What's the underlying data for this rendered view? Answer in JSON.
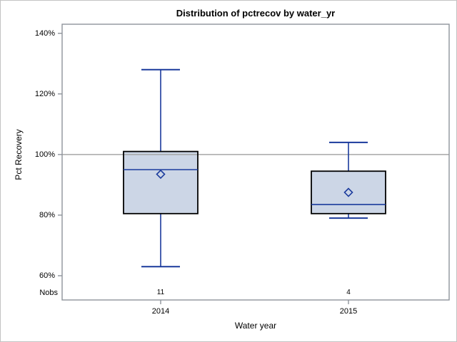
{
  "chart_data": {
    "type": "boxplot",
    "title": "Distribution of pctrecov by water_yr",
    "xlabel": "Water year",
    "ylabel": "Pct Recovery",
    "ylim": [
      52,
      143
    ],
    "y_ticks": [
      {
        "value": 140,
        "label": "140%"
      },
      {
        "value": 120,
        "label": "120%"
      },
      {
        "value": 100,
        "label": "100%"
      },
      {
        "value": 80,
        "label": "80%"
      },
      {
        "value": 60,
        "label": "60%"
      }
    ],
    "reference_lines": [
      100
    ],
    "grid": "single horizontal reference line at 100%",
    "legend": "none",
    "nobs_row_label": "Nobs",
    "categories": [
      "2014",
      "2015"
    ],
    "groups": [
      {
        "category": "2014",
        "nobs": "11",
        "whisker_low": 63,
        "q1": 80.5,
        "median": 95,
        "mean": 93.5,
        "q3": 101,
        "whisker_high": 128
      },
      {
        "category": "2015",
        "nobs": "4",
        "whisker_low": 79,
        "q1": 80.5,
        "median": 83.5,
        "mean": 87.5,
        "q3": 94.5,
        "whisker_high": 104
      }
    ],
    "colors": {
      "box_fill": "#ccd6e6",
      "box_border": "#000000",
      "line_blue": "#1a3a9c",
      "frame_gray": "#8e939b",
      "gridline_gray": "#a6a6a6",
      "outer_border": "#c3c3c3"
    }
  }
}
